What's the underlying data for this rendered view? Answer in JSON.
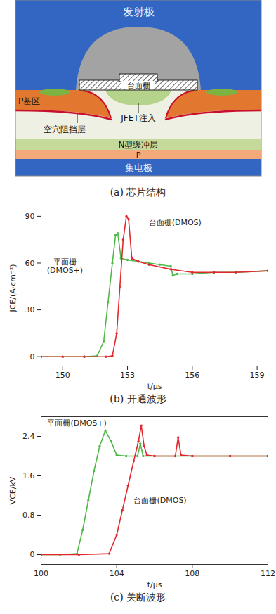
{
  "diagram": {
    "caption": "(a) 芯片结构",
    "labels": {
      "emitter": "发射极",
      "gate": "台面栅",
      "p_base": "P基区",
      "jfet": "JFET注入",
      "hole_barrier": "空穴阻挡层",
      "buffer": "N型缓冲层",
      "p_layer": "P",
      "collector": "集电极"
    }
  },
  "chart_data": [
    {
      "type": "line",
      "caption": "(b) 开通波形",
      "xlabel": "t/μs",
      "ylabel": "JCE/(A·cm⁻²)",
      "xlim": [
        149,
        159.5
      ],
      "xticks": [
        150,
        153,
        156,
        159
      ],
      "ylim": [
        -6,
        94
      ],
      "yticks": [
        0,
        30,
        60,
        90
      ],
      "series": [
        {
          "name": "平面栅\n(DMOS+)",
          "color": "#4fb848",
          "marker": "circle",
          "label_at": [
            150.1,
            58
          ],
          "x": [
            149,
            150,
            151,
            151.6,
            151.9,
            152.1,
            152.3,
            152.45,
            152.55,
            152.7,
            153,
            153.5,
            154,
            154.5,
            155,
            155.1,
            155.3,
            156,
            157,
            158,
            159.5
          ],
          "values": [
            0,
            0,
            0,
            0.5,
            10,
            35,
            60,
            78,
            79,
            63,
            62,
            61,
            60,
            59,
            58,
            52,
            53,
            53,
            54,
            54,
            55
          ]
        },
        {
          "name": "台面栅(DMOS)",
          "color": "#e2282e",
          "marker": "circle",
          "label_at": [
            155.2,
            86
          ],
          "x": [
            149,
            150,
            151,
            152,
            152.3,
            152.5,
            152.65,
            152.8,
            152.95,
            153.05,
            153.2,
            153.5,
            154,
            155,
            156,
            157,
            158,
            159.5
          ],
          "values": [
            0,
            0,
            0,
            0,
            0.5,
            15,
            45,
            75,
            90,
            88,
            63,
            61,
            59,
            56,
            54,
            54,
            54,
            55
          ]
        }
      ]
    },
    {
      "type": "line",
      "caption": "(c) 关断波形",
      "xlabel": "t/μs",
      "ylabel": "VCE/kV",
      "xlim": [
        100,
        112
      ],
      "xticks": [
        100,
        104,
        108,
        112
      ],
      "ylim": [
        -0.2,
        2.8
      ],
      "yticks": [
        0,
        0.8,
        1.6,
        2.4
      ],
      "series": [
        {
          "name": "平面栅(DMOS+)",
          "color": "#4fb848",
          "marker": "circle",
          "label_at": [
            101.9,
            2.68
          ],
          "x": [
            100,
            101,
            101.9,
            102.2,
            102.5,
            102.8,
            103.1,
            103.4,
            103.7,
            104.0,
            104.5,
            105.1,
            105.25,
            105.4,
            106,
            108,
            110,
            112
          ],
          "values": [
            0,
            0,
            0.02,
            0.5,
            1.1,
            1.7,
            2.2,
            2.52,
            2.3,
            2.02,
            2.0,
            2.0,
            2.25,
            2.0,
            2.0,
            2.0,
            2.0,
            2.0
          ]
        },
        {
          "name": "台面栅(DMOS)",
          "color": "#e2282e",
          "marker": "circle",
          "label_at": [
            106.3,
            1.1
          ],
          "x": [
            100,
            102,
            103.6,
            104.0,
            104.3,
            104.6,
            104.9,
            105.15,
            105.3,
            105.45,
            105.6,
            106,
            107.1,
            107.25,
            107.4,
            108,
            110,
            112
          ],
          "values": [
            0,
            0,
            0.02,
            0.4,
            0.9,
            1.4,
            1.9,
            2.3,
            2.62,
            2.2,
            2.02,
            2.0,
            2.0,
            2.38,
            2.02,
            2.0,
            2.0,
            2.0
          ]
        }
      ]
    }
  ]
}
